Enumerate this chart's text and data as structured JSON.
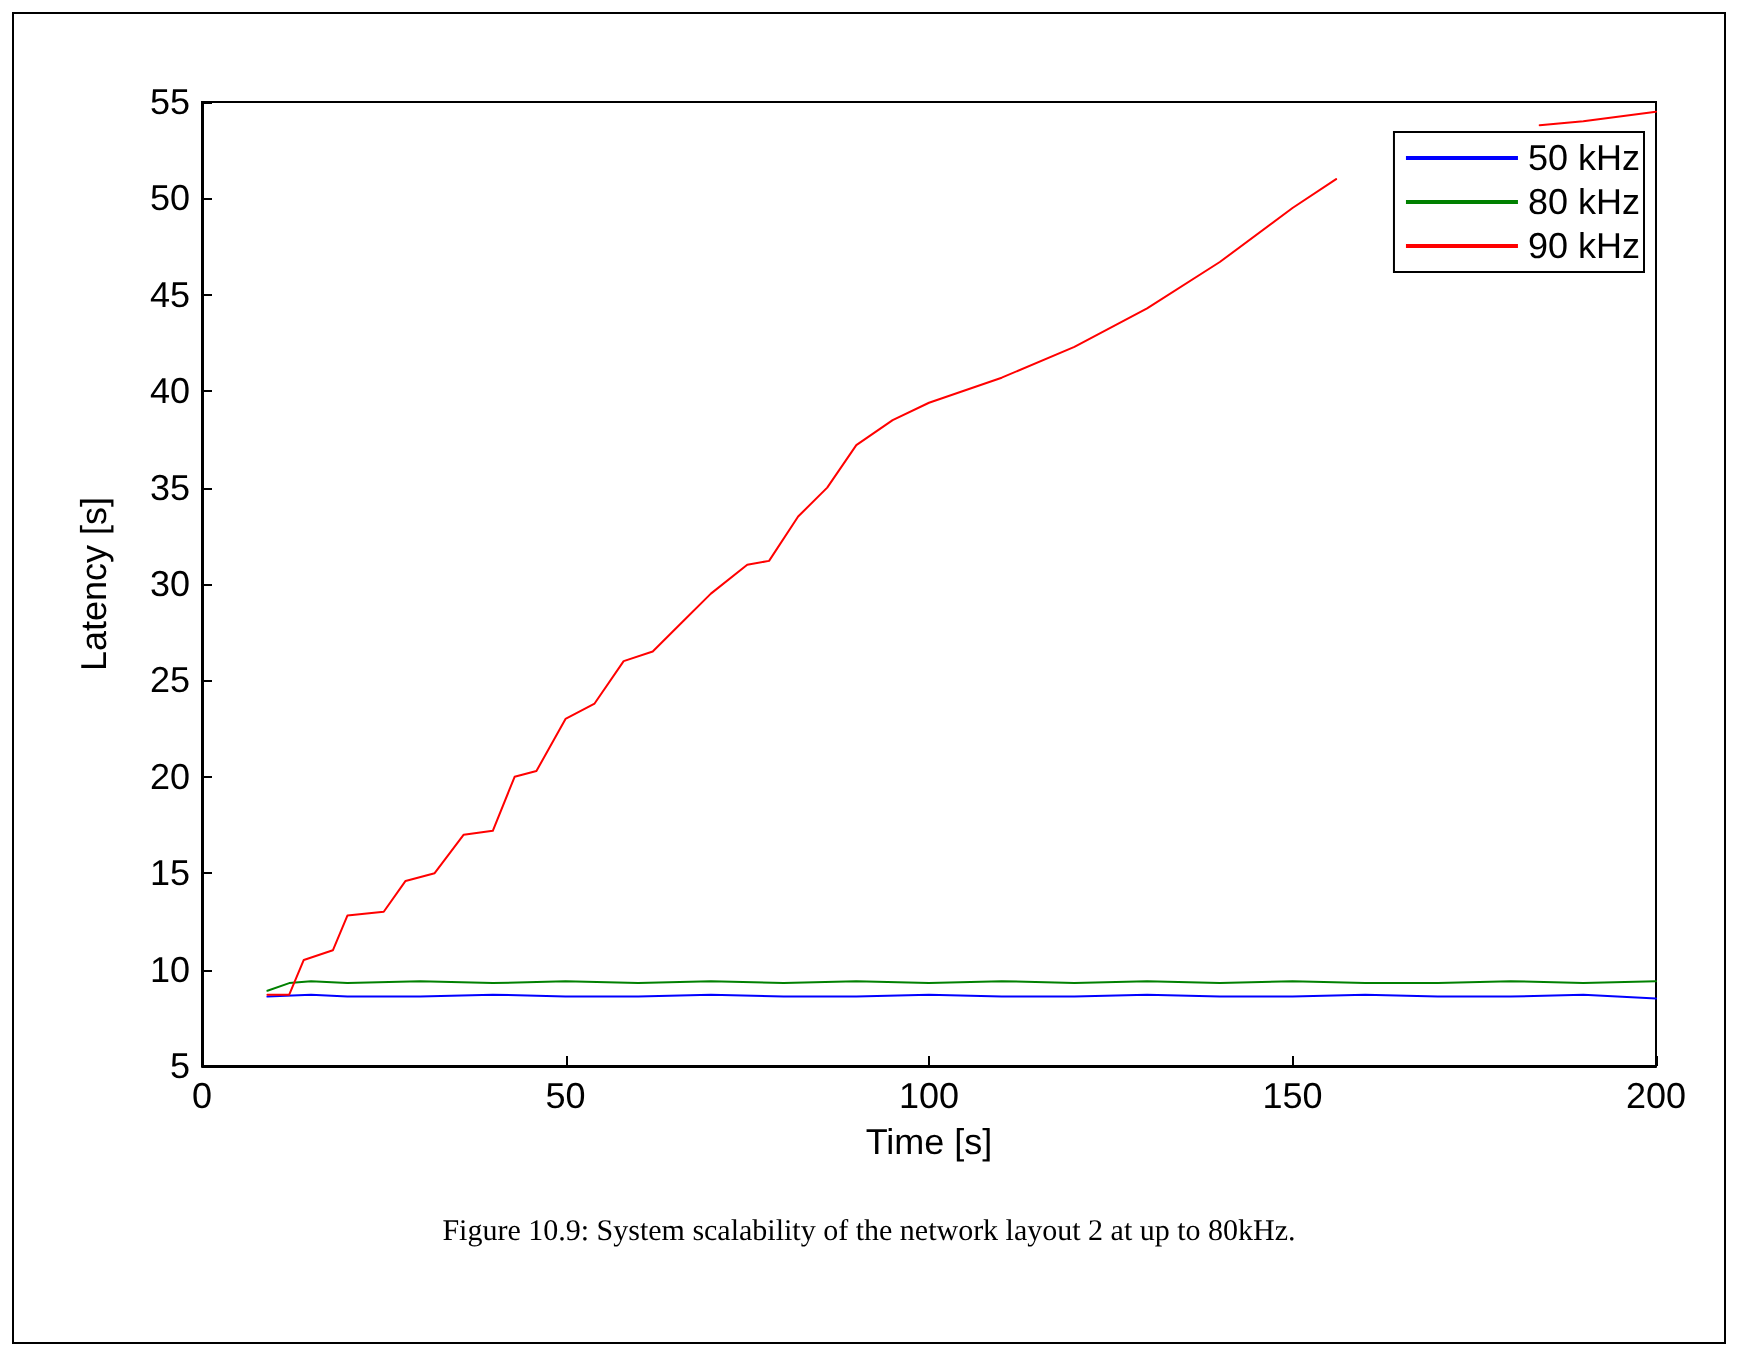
{
  "chart_data": {
    "type": "line",
    "xlabel": "Time [s]",
    "ylabel": "Latency [s]",
    "annotations": [
      "Figure 10.9:  System scalability of the network layout 2 at up to 80kHz."
    ],
    "xlim": [
      0,
      200
    ],
    "xticks": [
      0,
      50,
      100,
      150,
      200
    ],
    "ylim": [
      5,
      55
    ],
    "yticks": [
      5,
      10,
      15,
      20,
      25,
      30,
      35,
      40,
      45,
      50,
      55
    ],
    "grid": false,
    "legend": "top right",
    "marker": "none",
    "line_style": "solid",
    "series": [
      {
        "name": "50 kHz",
        "color": "#0000ff",
        "x": [
          9,
          15,
          20,
          30,
          40,
          50,
          60,
          70,
          80,
          90,
          100,
          110,
          120,
          130,
          140,
          150,
          160,
          170,
          180,
          190,
          200
        ],
        "values": [
          8.6,
          8.7,
          8.6,
          8.6,
          8.7,
          8.6,
          8.6,
          8.7,
          8.6,
          8.6,
          8.7,
          8.6,
          8.6,
          8.7,
          8.6,
          8.6,
          8.7,
          8.6,
          8.6,
          8.7,
          8.5
        ]
      },
      {
        "name": "80 kHz",
        "color": "#008000",
        "x": [
          9,
          12,
          15,
          20,
          30,
          40,
          50,
          60,
          70,
          80,
          90,
          100,
          110,
          120,
          130,
          140,
          150,
          160,
          170,
          180,
          190,
          200
        ],
        "values": [
          8.9,
          9.3,
          9.4,
          9.3,
          9.4,
          9.3,
          9.4,
          9.3,
          9.4,
          9.3,
          9.4,
          9.3,
          9.4,
          9.3,
          9.4,
          9.3,
          9.4,
          9.3,
          9.3,
          9.4,
          9.3,
          9.4
        ]
      },
      {
        "name": "90 kHz",
        "color": "#ff0000",
        "x": [
          9,
          12,
          14,
          18,
          20,
          25,
          28,
          32,
          36,
          40,
          43,
          46,
          50,
          54,
          58,
          62,
          66,
          70,
          75,
          78,
          82,
          86,
          90,
          95,
          100,
          110,
          120,
          130,
          140,
          150,
          156,
          170,
          184,
          190,
          200
        ],
        "values": [
          8.7,
          8.7,
          10.5,
          11,
          12.8,
          13,
          14.6,
          15,
          17,
          17.2,
          20,
          20.3,
          23,
          23.8,
          26,
          26.5,
          28,
          29.5,
          31,
          31.2,
          33.5,
          35,
          37.2,
          38.5,
          39.4,
          40.7,
          42.3,
          44.3,
          46.7,
          49.5,
          51,
          null,
          53.8,
          54,
          54.5
        ]
      }
    ]
  }
}
